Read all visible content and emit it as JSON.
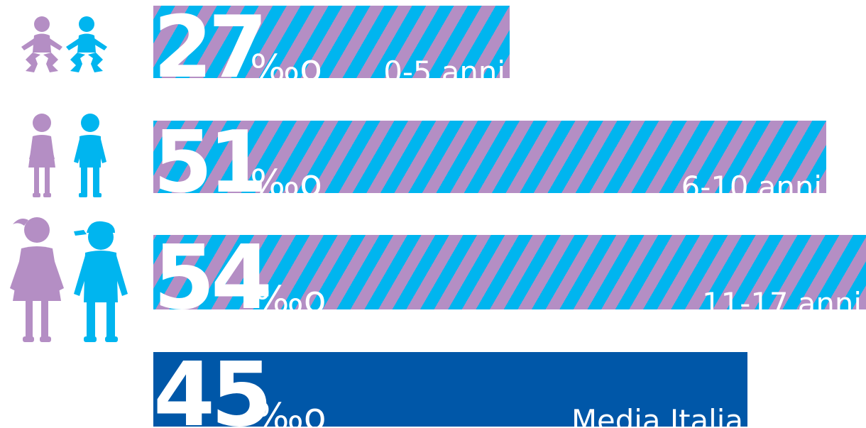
{
  "colors": {
    "purple": "#b48ec4",
    "cyan": "#00b5ef",
    "navy": "#0057a8"
  },
  "chart_data": {
    "type": "bar",
    "unit": "‰",
    "categories": [
      "0-5 anni",
      "6-10 anni",
      "11-17 anni",
      "Media Italia"
    ],
    "values": [
      27,
      51,
      54,
      45
    ],
    "value_labels": [
      "27",
      "51",
      "54",
      "45"
    ],
    "unit_label": "‰o",
    "xlim": [
      0,
      54
    ]
  },
  "icons": [
    "baby-girl-icon",
    "baby-boy-icon",
    "girl-icon",
    "boy-icon",
    "teen-girl-icon",
    "teen-boy-with-cap-icon"
  ]
}
